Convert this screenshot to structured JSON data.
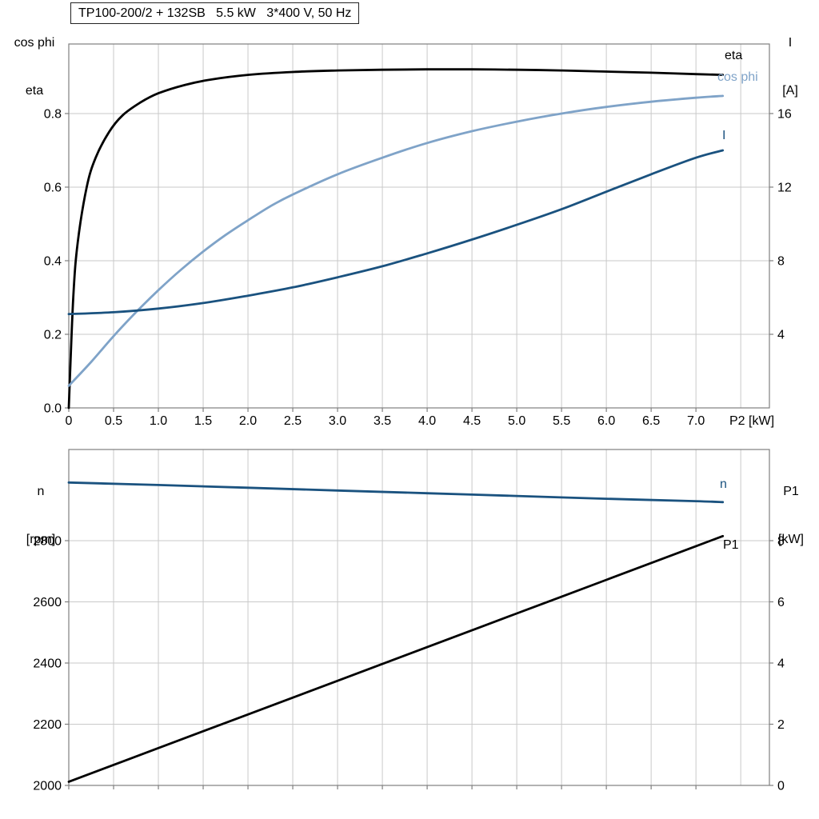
{
  "colors": {
    "black": "#000000",
    "light_blue": "#7fa3c8",
    "dark_blue": "#1a527f",
    "grid": "#c9c9c9",
    "axis_frame": "#7f7f7f",
    "text": "#000000",
    "background": "#ffffff"
  },
  "chart_data": [
    {
      "type": "line",
      "panel": "top",
      "title": "TP100-200/2 + 132SB   5.5 kW   3*400 V, 50 Hz",
      "legend_position": "right-inside",
      "grid": true,
      "x_axis": {
        "title": "P2 [kW]",
        "min": 0,
        "max": 7.82,
        "tick_values": [
          0,
          0.5,
          1,
          1.5,
          2,
          2.5,
          3,
          3.5,
          4,
          4.5,
          5,
          5.5,
          6,
          6.5,
          7
        ],
        "tick_labels": [
          "0",
          "0.5",
          "1.0",
          "1.5",
          "2.0",
          "2.5",
          "3.0",
          "3.5",
          "4.0",
          "4.5",
          "5.0",
          "5.5",
          "6.0",
          "6.5",
          "7.0"
        ],
        "grid_extra": [
          7.5
        ]
      },
      "y_left": {
        "label_lines": [
          "cos phi",
          "eta"
        ],
        "min": 0,
        "max": 0.989,
        "tick_values": [
          0,
          0.2,
          0.4,
          0.6,
          0.8
        ],
        "tick_labels": [
          "0.0",
          "0.2",
          "0.4",
          "0.6",
          "0.8"
        ]
      },
      "y_right": {
        "label_lines": [
          "I",
          "[A]"
        ],
        "min": 0,
        "max": 19.78,
        "tick_values": [
          4,
          8,
          12,
          16
        ],
        "tick_labels": [
          "4",
          "8",
          "12",
          "16"
        ]
      },
      "series": [
        {
          "name": "eta",
          "axis": "left",
          "color_key": "black",
          "points": [
            [
              0,
              0
            ],
            [
              0.05,
              0.3
            ],
            [
              0.1,
              0.45
            ],
            [
              0.2,
              0.6
            ],
            [
              0.3,
              0.68
            ],
            [
              0.45,
              0.75
            ],
            [
              0.6,
              0.795
            ],
            [
              0.8,
              0.83
            ],
            [
              1,
              0.855
            ],
            [
              1.3,
              0.878
            ],
            [
              1.6,
              0.893
            ],
            [
              2,
              0.905
            ],
            [
              2.5,
              0.913
            ],
            [
              3,
              0.917
            ],
            [
              3.5,
              0.919
            ],
            [
              4,
              0.92
            ],
            [
              4.5,
              0.92
            ],
            [
              5,
              0.919
            ],
            [
              5.5,
              0.917
            ],
            [
              6,
              0.914
            ],
            [
              6.5,
              0.911
            ],
            [
              7,
              0.907
            ],
            [
              7.3,
              0.905
            ]
          ]
        },
        {
          "name": "cos phi",
          "axis": "left",
          "color_key": "light_blue",
          "points": [
            [
              0,
              0.06
            ],
            [
              0.25,
              0.125
            ],
            [
              0.5,
              0.195
            ],
            [
              0.75,
              0.26
            ],
            [
              1,
              0.32
            ],
            [
              1.25,
              0.375
            ],
            [
              1.5,
              0.425
            ],
            [
              1.75,
              0.47
            ],
            [
              2,
              0.51
            ],
            [
              2.25,
              0.548
            ],
            [
              2.5,
              0.58
            ],
            [
              3,
              0.635
            ],
            [
              3.5,
              0.68
            ],
            [
              4,
              0.72
            ],
            [
              4.5,
              0.752
            ],
            [
              5,
              0.778
            ],
            [
              5.5,
              0.8
            ],
            [
              6,
              0.818
            ],
            [
              6.5,
              0.832
            ],
            [
              7,
              0.843
            ],
            [
              7.3,
              0.848
            ]
          ]
        },
        {
          "name": "I",
          "axis": "right",
          "color_key": "dark_blue",
          "points": [
            [
              0,
              5.1
            ],
            [
              0.5,
              5.2
            ],
            [
              1,
              5.4
            ],
            [
              1.5,
              5.7
            ],
            [
              2,
              6.1
            ],
            [
              2.5,
              6.55
            ],
            [
              3,
              7.1
            ],
            [
              3.5,
              7.7
            ],
            [
              4,
              8.4
            ],
            [
              4.5,
              9.15
            ],
            [
              5,
              9.95
            ],
            [
              5.5,
              10.8
            ],
            [
              6,
              11.75
            ],
            [
              6.5,
              12.7
            ],
            [
              7,
              13.6
            ],
            [
              7.3,
              14.0
            ]
          ]
        }
      ]
    },
    {
      "type": "line",
      "panel": "bottom",
      "title": "",
      "grid": true,
      "x_axis": {
        "title": "",
        "min": 0,
        "max": 7.82,
        "tick_values": [
          0,
          0.5,
          1,
          1.5,
          2,
          2.5,
          3,
          3.5,
          4,
          4.5,
          5,
          5.5,
          6,
          6.5,
          7
        ],
        "tick_labels": [],
        "grid_extra": [
          7.5
        ]
      },
      "y_left": {
        "label_lines": [
          "n",
          "[rpm]"
        ],
        "min": 2000,
        "max": 3098,
        "tick_values": [
          2000,
          2200,
          2400,
          2600,
          2800
        ],
        "tick_labels": [
          "2000",
          "2200",
          "2400",
          "2600",
          "2800"
        ]
      },
      "y_right": {
        "label_lines": [
          "P1",
          "[kW]"
        ],
        "min": 0,
        "max": 10.98,
        "tick_values": [
          0,
          2,
          4,
          6,
          8
        ],
        "tick_labels": [
          "0",
          "2",
          "4",
          "6",
          "8"
        ]
      },
      "series": [
        {
          "name": "n",
          "axis": "left",
          "color_key": "dark_blue",
          "points": [
            [
              0,
              2990
            ],
            [
              1,
              2982
            ],
            [
              2,
              2973
            ],
            [
              3,
              2964
            ],
            [
              4,
              2955
            ],
            [
              5,
              2946
            ],
            [
              6,
              2937
            ],
            [
              7,
              2929
            ],
            [
              7.3,
              2926
            ]
          ]
        },
        {
          "name": "P1",
          "axis": "right",
          "color_key": "black",
          "points": [
            [
              0,
              0.12
            ],
            [
              1,
              1.22
            ],
            [
              2,
              2.32
            ],
            [
              3,
              3.42
            ],
            [
              4,
              4.52
            ],
            [
              5,
              5.62
            ],
            [
              6,
              6.72
            ],
            [
              7,
              7.82
            ],
            [
              7.3,
              8.15
            ]
          ]
        }
      ]
    }
  ]
}
